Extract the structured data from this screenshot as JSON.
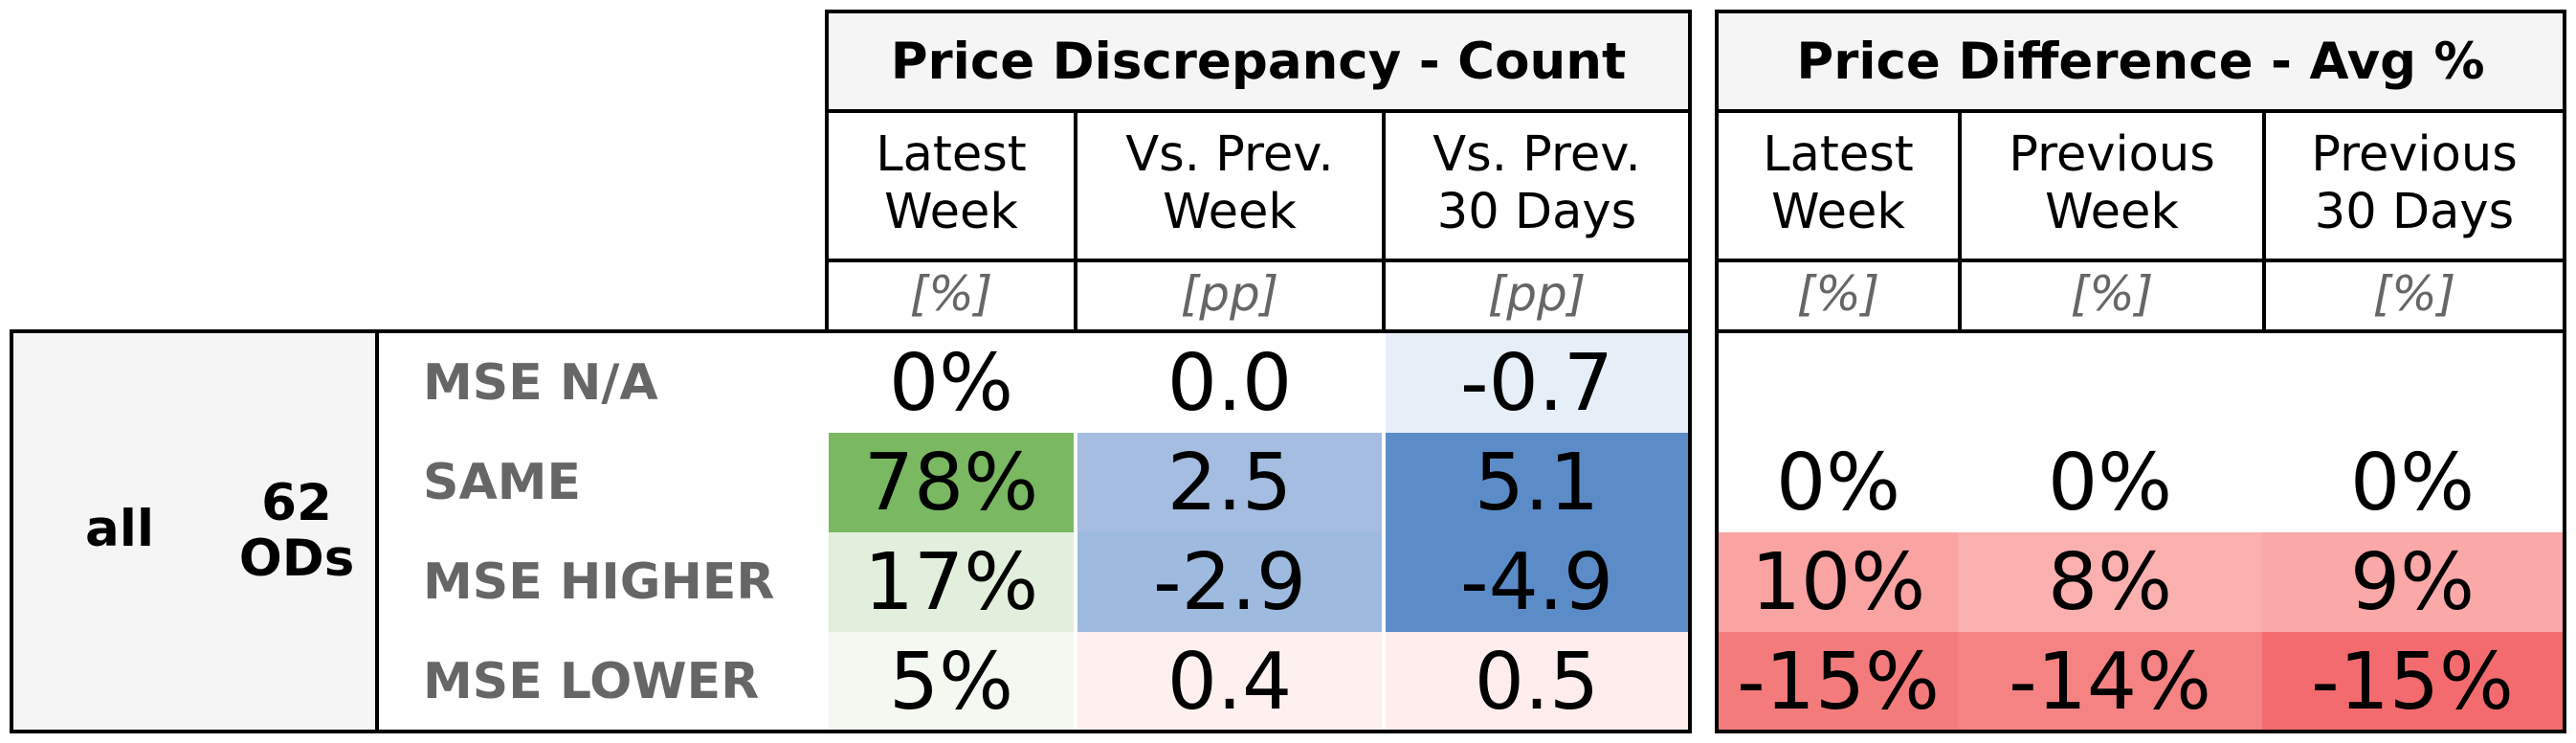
{
  "groups": [
    {
      "title": "Price Discrepancy - Count",
      "columns": [
        {
          "label": "Latest\nWeek",
          "unit": "[%]"
        },
        {
          "label": "Vs. Prev.\nWeek",
          "unit": "[pp]"
        },
        {
          "label": "Vs. Prev.\n30 Days",
          "unit": "[pp]"
        }
      ]
    },
    {
      "title": "Price Difference - Avg %",
      "columns": [
        {
          "label": "Latest\nWeek",
          "unit": "[%]"
        },
        {
          "label": "Previous\nWeek",
          "unit": "[%]"
        },
        {
          "label": "Previous\n30 Days",
          "unit": "[%]"
        }
      ]
    }
  ],
  "segment": {
    "name": "all",
    "count": "62\nODs"
  },
  "rows": [
    "MSE N/A",
    "SAME",
    "MSE HIGHER",
    "MSE LOWER"
  ],
  "colors": {
    "green_strong": "#7ab862",
    "blue_strong": "#5b8cc8",
    "red_strong": "#f36b6e",
    "header_bg": "#f5f5f5",
    "label_gray": "#666666"
  },
  "chart_data": {
    "type": "table",
    "count_table": {
      "title": "Price Discrepancy - Count",
      "columns": [
        "Latest Week",
        "Vs. Prev. Week",
        "Vs. Prev. 30 Days"
      ],
      "units": [
        "[%]",
        "[pp]",
        "[pp]"
      ],
      "rows": [
        {
          "label": "MSE N/A",
          "values": [
            "0%",
            "0.0",
            "-0.7"
          ],
          "colors": [
            "#ffffff",
            "#ffffff",
            "#e6eef8"
          ]
        },
        {
          "label": "SAME",
          "values": [
            "78%",
            "2.5",
            "5.1"
          ],
          "colors": [
            "#7ab862",
            "#a4bde0",
            "#5b8cc8"
          ]
        },
        {
          "label": "MSE HIGHER",
          "values": [
            "17%",
            "-2.9",
            "-4.9"
          ],
          "colors": [
            "#e1efdc",
            "#9fbadf",
            "#5b8cc8"
          ]
        },
        {
          "label": "MSE LOWER",
          "values": [
            "5%",
            "0.4",
            "0.5"
          ],
          "colors": [
            "#f3f8f1",
            "#fff0f0",
            "#ffeded"
          ]
        }
      ]
    },
    "avg_table": {
      "title": "Price Difference - Avg %",
      "columns": [
        "Latest Week",
        "Previous Week",
        "Previous 30 Days"
      ],
      "units": [
        "[%]",
        "[%]",
        "[%]"
      ],
      "rows": [
        {
          "label": "MSE N/A",
          "values": [
            "",
            "",
            ""
          ],
          "colors": [
            "#ffffff",
            "#ffffff",
            "#ffffff"
          ]
        },
        {
          "label": "SAME",
          "values": [
            "0%",
            "0%",
            "0%"
          ],
          "colors": [
            "#ffffff",
            "#ffffff",
            "#ffffff"
          ]
        },
        {
          "label": "MSE HIGHER",
          "values": [
            "10%",
            "8%",
            "9%"
          ],
          "colors": [
            "#f9a3a3",
            "#fbb0b0",
            "#faa8a8"
          ]
        },
        {
          "label": "MSE LOWER",
          "values": [
            "-15%",
            "-14%",
            "-15%"
          ],
          "colors": [
            "#f47b7c",
            "#f58384",
            "#f36b6e"
          ]
        }
      ]
    }
  }
}
